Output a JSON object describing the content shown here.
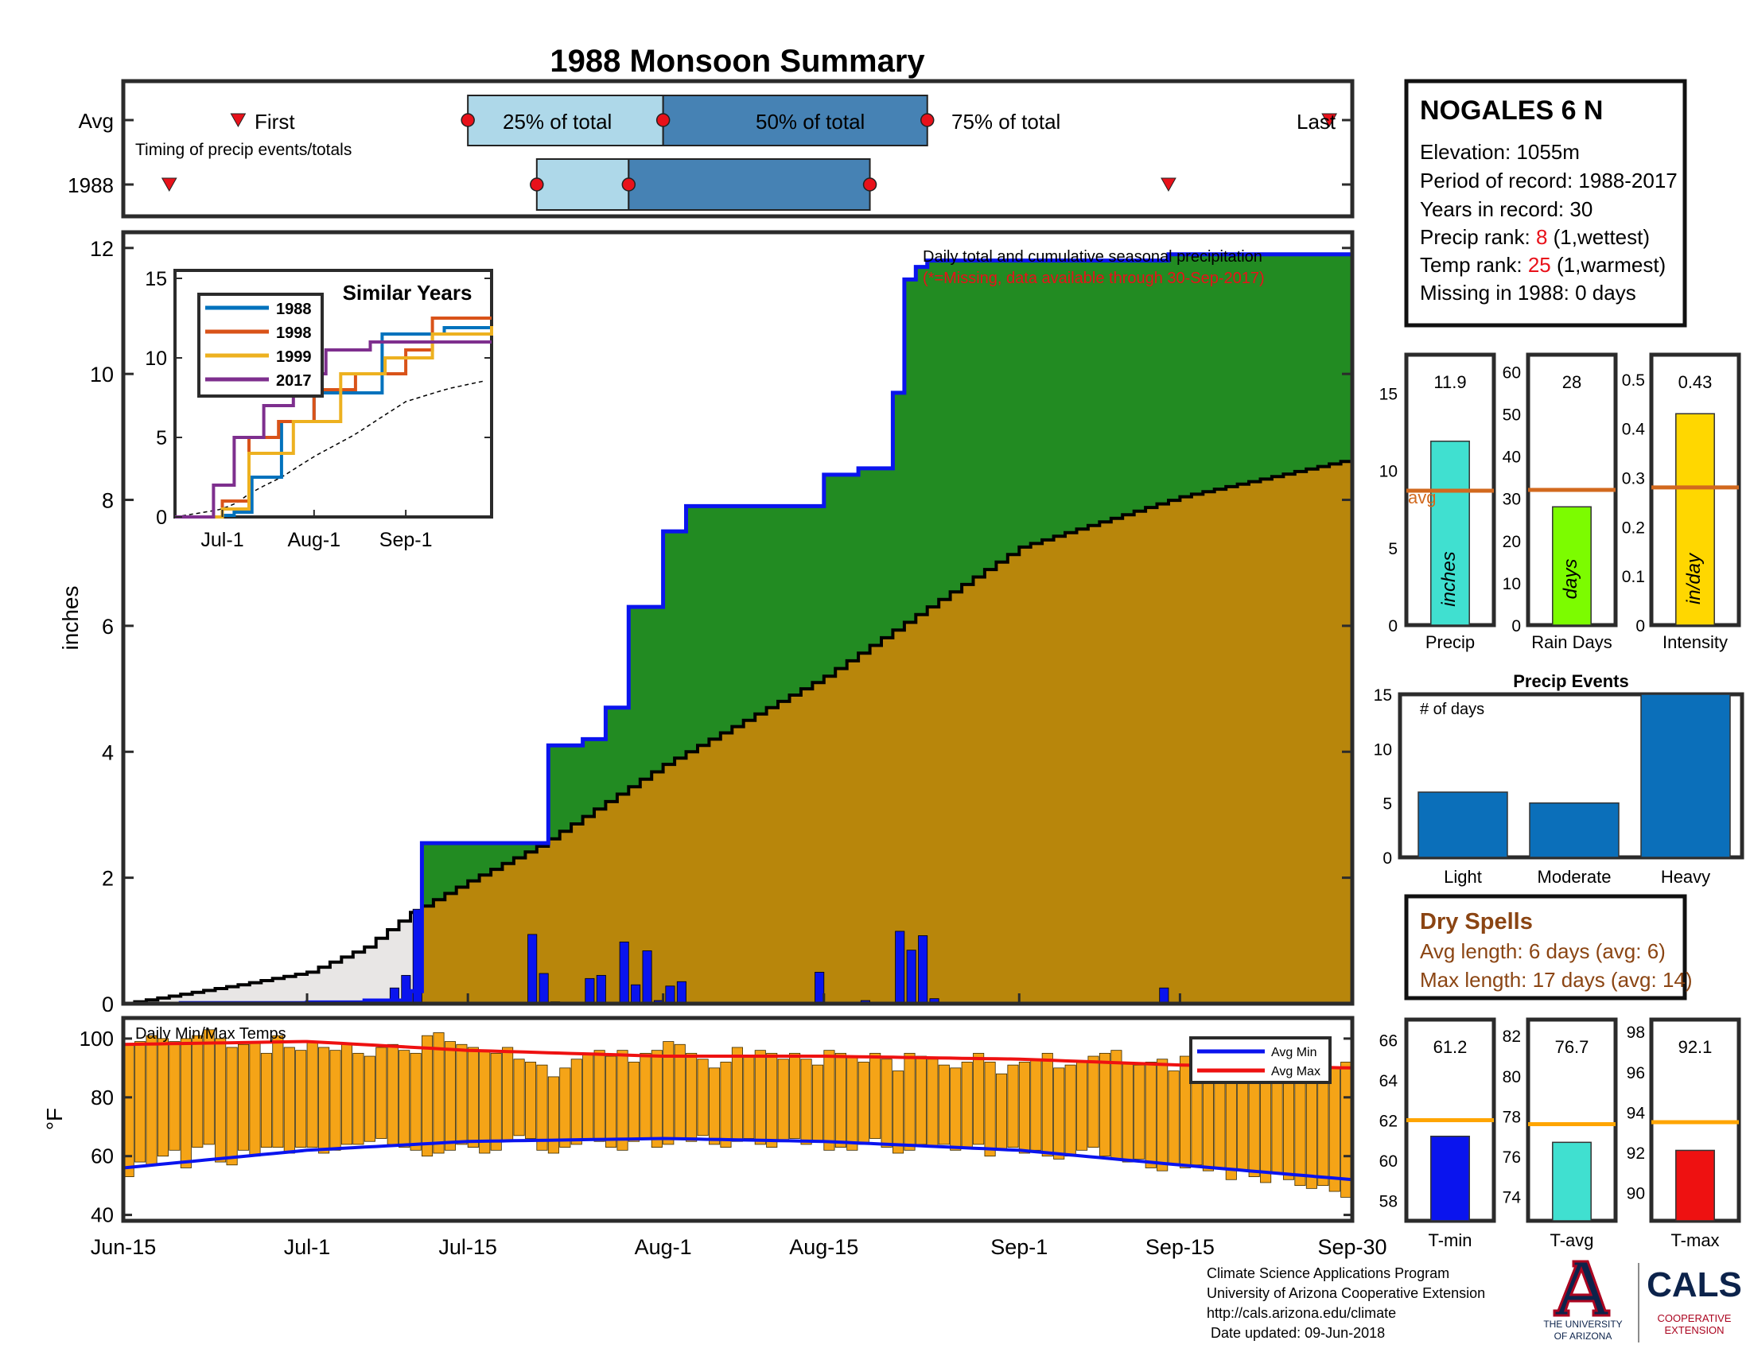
{
  "title": "1988 Monsoon Summary",
  "colors": {
    "title": "#e8111a",
    "frame": "#2b2b2b",
    "light_blue": "#aed8e9",
    "mid_blue": "#4682b4",
    "marker": "#e8111a",
    "green": "#228b22",
    "gray_fill": "#e8e6e5",
    "gold": "#b8860b",
    "bar_blue": "#0a14ee",
    "orange": "#f5a417",
    "red": "#ee1111",
    "avg_line": "#d2691e",
    "teal": "#40e0d0",
    "lime": "#7cfc00",
    "yellow": "#ffd700",
    "event_blue": "#0b6fba",
    "avg_temp_line": "#ffa500",
    "brown": "#8b4513",
    "navy": "#0c234b",
    "cals_red": "#ab0520"
  },
  "timing": {
    "row_labels": [
      "Avg",
      "1988"
    ],
    "note": "Timing of precip events/totals",
    "avg": {
      "first": "Jun-25",
      "q25": "Jul-15",
      "q50": "Aug-1",
      "q75": "Aug-24",
      "last": "Sep-28",
      "first_label": "First",
      "q25_label": "25% of total",
      "q50_label": "50% of total",
      "q75_label": "75% of total",
      "last_label": "Last"
    },
    "year": {
      "first": "Jun-19",
      "q25": "Jul-21",
      "q50": "Jul-29",
      "q75": "Aug-19",
      "last": "Sep-14"
    }
  },
  "station": {
    "name": "NOGALES 6 N",
    "elevation": "Elevation: 1055m",
    "period": "Period of record: 1988-2017",
    "years": "Years in record: 30",
    "precip_rank_prefix": "Precip rank: ",
    "precip_rank": "8",
    "precip_rank_suffix": " (1,wettest)",
    "temp_rank_prefix": "Temp rank: ",
    "temp_rank": "25",
    "temp_rank_suffix": " (1,warmest)",
    "missing": "Missing in 1988: 0 days"
  },
  "main_chart": {
    "ylabel": "inches",
    "yticks": [
      "0",
      "2",
      "4",
      "6",
      "8",
      "10",
      "12"
    ],
    "xticks": [
      "Jun-15",
      "Jul-1",
      "Jul-15",
      "Aug-1",
      "Aug-15",
      "Sep-1",
      "Sep-15",
      "Sep-30"
    ],
    "legend_line1": "Daily total and cumulative seasonal precipitation",
    "legend_line2": "(*=Missing, data available through 30-Sep-2017)"
  },
  "inset": {
    "title": "Similar Years",
    "yticks": [
      "0",
      "5",
      "10",
      "15"
    ],
    "xticks": [
      "Jul-1",
      "Aug-1",
      "Sep-1"
    ],
    "legend": [
      "1988",
      "1998",
      "1999",
      "2017"
    ]
  },
  "precip_bars": {
    "precip": {
      "value": "11.9",
      "unit": "inches",
      "label": "Precip",
      "ticks": [
        "0",
        "5",
        "10",
        "15"
      ],
      "avg_label": "avg"
    },
    "rain_days": {
      "value": "28",
      "unit": "days",
      "label": "Rain Days",
      "ticks": [
        "0",
        "10",
        "20",
        "30",
        "40",
        "50",
        "60"
      ]
    },
    "intensity": {
      "value": "0.43",
      "unit": "in/day",
      "label": "Intensity",
      "ticks": [
        "0",
        "0.1",
        "0.2",
        "0.3",
        "0.4",
        "0.5"
      ]
    }
  },
  "events": {
    "title": "Precip Events",
    "note": "# of days",
    "ticks": [
      "0",
      "5",
      "10",
      "15"
    ],
    "categories": [
      "Light",
      "Moderate",
      "Heavy"
    ]
  },
  "dry_spells": {
    "title": "Dry Spells",
    "avg": "Avg length: 6 days (avg: 6)",
    "max": "Max length: 17 days (avg: 14)"
  },
  "temps_chart": {
    "label": "Daily Min/Max Temps",
    "ylabel": "°F",
    "yticks": [
      "40",
      "60",
      "80",
      "100"
    ],
    "legend": [
      "Avg Min",
      "Avg Max"
    ]
  },
  "temp_bars": {
    "tmin": {
      "value": "61.2",
      "label": "T-min",
      "ticks": [
        "58",
        "60",
        "62",
        "64",
        "66"
      ]
    },
    "tavg": {
      "value": "76.7",
      "label": "T-avg",
      "ticks": [
        "74",
        "76",
        "78",
        "80",
        "82"
      ]
    },
    "tmax": {
      "value": "92.1",
      "label": "T-max",
      "ticks": [
        "90",
        "92",
        "94",
        "96",
        "98"
      ]
    }
  },
  "footer": {
    "line1": "Climate Science Applications Program",
    "line2": "University of Arizona Cooperative Extension",
    "line3": "http://cals.arizona.edu/climate",
    "line4": " Date updated: 09-Jun-2018"
  },
  "logo": {
    "ua1": "THE UNIVERSITY",
    "ua2": "OF ARIZONA",
    "cals": "CALS",
    "coop1": "COOPERATIVE",
    "coop2": "EXTENSION"
  },
  "chart_data": [
    {
      "type": "area",
      "title": "",
      "ylabel": "inches",
      "ylim": [
        0,
        12
      ],
      "x_range": [
        "Jun-15",
        "Sep-30"
      ],
      "series": [
        {
          "name": "",
          "x": [
            "Jun-15",
            "Jun-20",
            "Jun-25",
            "Jul-1",
            "Jul-6",
            "Jul-10",
            "Jul-11",
            "Jul-21",
            "Jul-22",
            "Jul-25",
            "Jul-27",
            "Jul-29",
            "Aug-1",
            "Aug-3",
            "Aug-15",
            "Aug-18",
            "Aug-21",
            "Aug-22",
            "Aug-23",
            "Aug-24",
            "Aug-25",
            "Sep-14",
            "Sep-30"
          ],
          "values": [
            0,
            0.01,
            0.01,
            0.02,
            0.05,
            0.2,
            2.55,
            2.55,
            4.1,
            4.2,
            4.7,
            6.3,
            7.5,
            7.9,
            8.4,
            8.5,
            9.7,
            11.5,
            11.7,
            11.8,
            11.8,
            11.9,
            11.9
          ]
        },
        {
          "name": "",
          "x": [
            "Jun-15",
            "Jun-20",
            "Jun-25",
            "Jul-1",
            "Jul-6",
            "Jul-10",
            "Jul-15",
            "Jul-21",
            "Aug-1",
            "Aug-15",
            "Aug-24",
            "Sep-1",
            "Sep-15",
            "Sep-30"
          ],
          "values": [
            0,
            0.15,
            0.3,
            0.5,
            0.9,
            1.45,
            1.95,
            2.5,
            3.8,
            5.2,
            6.3,
            7.25,
            8.05,
            8.65
          ]
        }
      ],
      "daily_bars": {
        "x": [
          "Jul-7",
          "Jul-9",
          "Jul-10",
          "Jul-11",
          "Jul-21",
          "Jul-22",
          "Jul-23",
          "Jul-26",
          "Jul-27",
          "Jul-29",
          "Jul-30",
          "Jul-31",
          "Aug-1",
          "Aug-2",
          "Aug-3",
          "Aug-15",
          "Aug-19",
          "Aug-22",
          "Aug-23",
          "Aug-24",
          "Aug-25",
          "Sep-14"
        ],
        "values": [
          0.03,
          0.25,
          0.45,
          1.5,
          1.1,
          0.48,
          0.03,
          0.4,
          0.45,
          0.98,
          0.3,
          0.84,
          0.05,
          0.28,
          0.35,
          0.5,
          0.05,
          1.15,
          0.85,
          1.08,
          0.08,
          0.25
        ]
      }
    },
    {
      "type": "line",
      "title": "Similar Years",
      "ylim": [
        0,
        15
      ],
      "series": [
        {
          "name": "1988",
          "x": [
            "Jun-15",
            "Jul-1",
            "Jul-5",
            "Jul-11",
            "Jul-21",
            "Aug-1",
            "Aug-24",
            "Sep-14",
            "Sep-30"
          ],
          "values": [
            0,
            0.1,
            0.3,
            2.5,
            6,
            7.8,
            11.5,
            11.9,
            11.9
          ]
        },
        {
          "name": "1998",
          "x": [
            "Jun-15",
            "Jul-1",
            "Jul-10",
            "Jul-20",
            "Aug-1",
            "Aug-15",
            "Sep-1",
            "Sep-10",
            "Sep-30"
          ],
          "values": [
            0,
            1,
            5,
            6,
            8,
            9,
            10.5,
            12.5,
            12.5
          ]
        },
        {
          "name": "1999",
          "x": [
            "Jun-15",
            "Jul-1",
            "Jul-10",
            "Jul-25",
            "Aug-10",
            "Aug-25",
            "Sep-10",
            "Sep-30"
          ],
          "values": [
            0,
            0.5,
            4,
            6,
            9,
            10,
            11.5,
            12
          ]
        },
        {
          "name": "2017",
          "x": [
            "Jun-15",
            "Jun-28",
            "Jul-5",
            "Jul-15",
            "Jul-25",
            "Aug-5",
            "Aug-20",
            "Sep-30"
          ],
          "values": [
            0,
            2,
            5,
            7,
            9,
            10.5,
            11,
            11
          ]
        }
      ]
    },
    {
      "type": "bar",
      "title": "",
      "categories": [
        "Precip",
        "Rain Days",
        "Intensity"
      ],
      "values": [
        11.9,
        28,
        0.43
      ],
      "averages": [
        8.7,
        32,
        0.28
      ]
    },
    {
      "type": "bar",
      "title": "Precip Events",
      "categories": [
        "Light",
        "Moderate",
        "Heavy"
      ],
      "values": [
        6,
        5,
        15
      ],
      "ylim": [
        0,
        15
      ]
    },
    {
      "type": "bar",
      "title": "Daily Min/Max Temps",
      "ylim": [
        38,
        107
      ],
      "x_range": [
        "Jun-15",
        "Sep-30"
      ],
      "avg_min": {
        "x": [
          "Jun-15",
          "Jul-1",
          "Jul-15",
          "Aug-1",
          "Aug-15",
          "Sep-1",
          "Sep-15",
          "Sep-30"
        ],
        "values": [
          56,
          62,
          65,
          66,
          65,
          62,
          57,
          52
        ]
      },
      "avg_max": {
        "x": [
          "Jun-15",
          "Jul-1",
          "Jul-15",
          "Aug-1",
          "Aug-15",
          "Sep-1",
          "Sep-15",
          "Sep-30"
        ],
        "values": [
          98,
          99,
          96,
          94,
          94,
          93,
          91,
          90
        ]
      }
    },
    {
      "type": "bar",
      "title": "",
      "categories": [
        "T-min",
        "T-avg",
        "T-max"
      ],
      "values": [
        61.2,
        76.7,
        92.1
      ],
      "averages": [
        62,
        77.6,
        93.5
      ]
    }
  ]
}
